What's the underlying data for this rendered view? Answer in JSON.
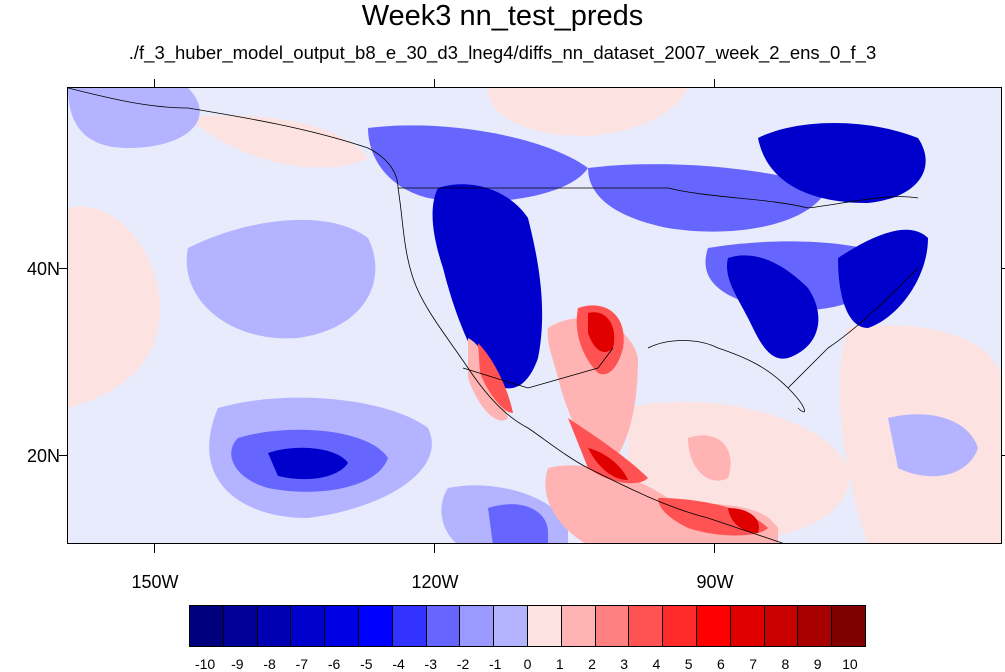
{
  "title": "Week3 nn_test_preds",
  "subtitle": "./f_3_huber_model_output_b8_e_30_d3_lneg4/diffs_nn_dataset_2007_week_2_ens_0_f_3",
  "latitude_labels": [
    "40N",
    "20N"
  ],
  "longitude_labels": [
    "150W",
    "120W",
    "90W"
  ],
  "colorbar": {
    "labels": [
      "-10",
      "-9",
      "-8",
      "-7",
      "-6",
      "-5",
      "-4",
      "-3",
      "-2",
      "-1",
      "0",
      "1",
      "2",
      "3",
      "4",
      "5",
      "6",
      "7",
      "8",
      "9",
      "10"
    ],
    "colors": [
      "#00007f",
      "#000098",
      "#0000b2",
      "#0000cc",
      "#0000e5",
      "#0000ff",
      "#3333ff",
      "#6666ff",
      "#9999ff",
      "#b3b3ff",
      "#e6e6fa",
      "#fde2e2",
      "#ffb3b3",
      "#ff8080",
      "#ff5252",
      "#ff2a2a",
      "#ff0000",
      "#e00000",
      "#c80000",
      "#a80000",
      "#800000"
    ]
  },
  "map_colors": {
    "background": "#e8ebfb",
    "light_blue": "#b3b3ff",
    "medium_blue": "#6666ff",
    "blue": "#2a2aff",
    "dark_blue": "#0000cc",
    "light_red": "#fde2e2",
    "pink": "#ffb3b3",
    "red": "#ff5252",
    "deep_red": "#e00000"
  }
}
